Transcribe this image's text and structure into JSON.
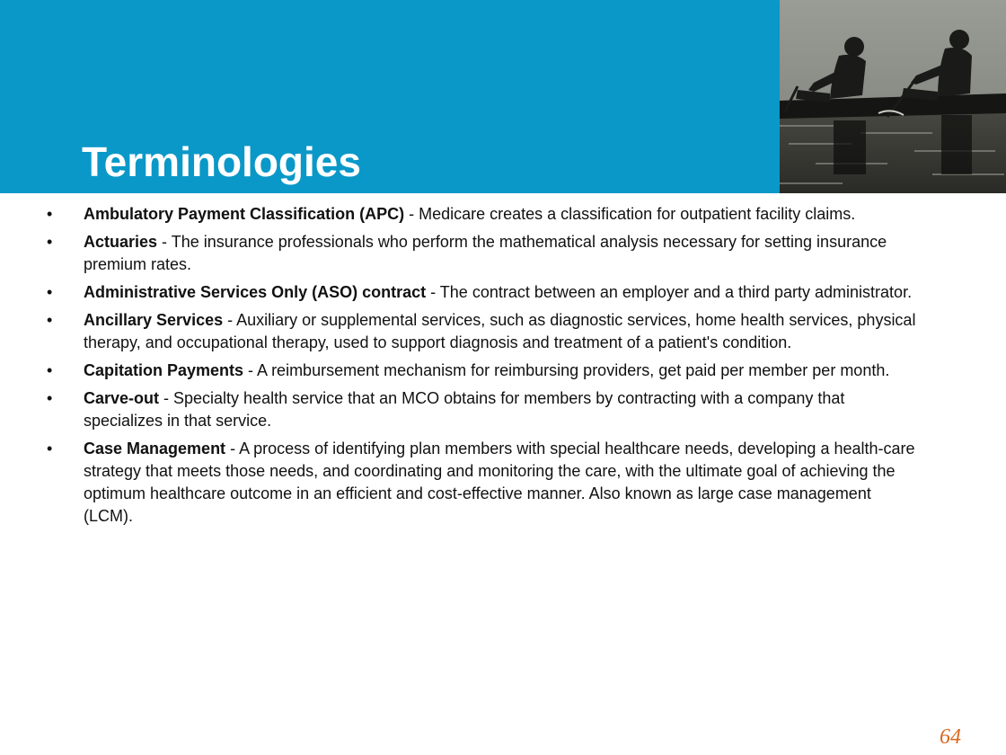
{
  "slide": {
    "title": "Terminologies",
    "page_number": "64",
    "photo_description_icon": "rowers-photo",
    "accent_color": "#0a98c8",
    "page_number_color": "#d9691e"
  },
  "terms": [
    {
      "bullet": "•",
      "name": "Ambulatory Payment Classification (APC)",
      "definition": " - Medicare creates a classification for outpatient facility claims."
    },
    {
      "bullet": "•",
      "name": "Actuaries",
      "definition": " - The insurance professionals who perform the mathematical analysis necessary for setting insurance premium rates."
    },
    {
      "bullet": "•",
      "name": "Administrative Services Only (ASO) contract",
      "definition": " - The contract between an employer and a third party administrator."
    },
    {
      "bullet": "•",
      "name": "Ancillary Services",
      "definition": " - Auxiliary or supplemental services, such as diagnostic services, home health services, physical therapy, and occupational therapy, used to support diagnosis and treatment of a patient's condition."
    },
    {
      "bullet": "•",
      "name": "Capitation Payments",
      "definition": " - A reimbursement mechanism for reimbursing providers, get paid per member per month."
    },
    {
      "bullet": "•",
      "name": "Carve-out",
      "definition": " - Specialty health service that an MCO obtains for members by contracting with a company that specializes in that service."
    },
    {
      "bullet": "•",
      "name": "Case Management",
      "definition": " - A process of identifying plan members with special healthcare needs, developing a health-care strategy that meets those needs, and coordinating and monitoring the care, with the ultimate goal of achieving the optimum healthcare outcome in an efficient and cost-effective manner. Also known as large case management (LCM)."
    }
  ]
}
